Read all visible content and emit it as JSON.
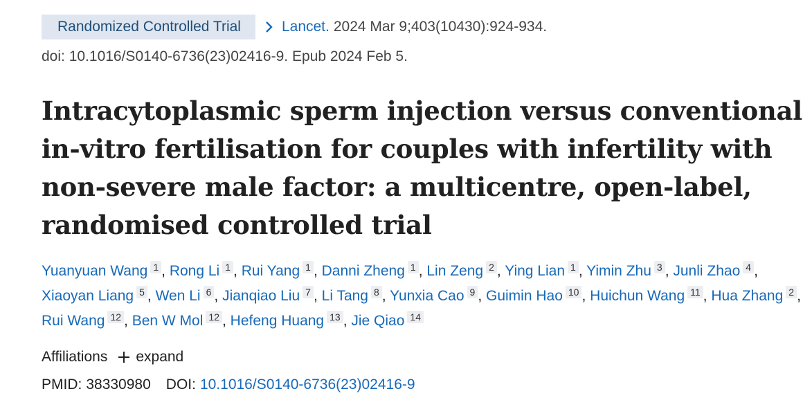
{
  "header": {
    "publication_type": "Randomized Controlled Trial",
    "journal": "Lancet.",
    "citation": "2024 Mar 9;403(10430):924-934.",
    "doi_line": "doi: 10.1016/S0140-6736(23)02416-9. Epub 2024 Feb 5."
  },
  "title": "Intracytoplasmic sperm injection versus conventional in-vitro fertilisation for couples with infertility with non-severe male factor: a multicentre, open-label, randomised controlled trial",
  "authors": [
    {
      "name": "Yuanyuan Wang",
      "aff": "1"
    },
    {
      "name": "Rong Li",
      "aff": "1"
    },
    {
      "name": "Rui Yang",
      "aff": "1"
    },
    {
      "name": "Danni Zheng",
      "aff": "1"
    },
    {
      "name": "Lin Zeng",
      "aff": "2"
    },
    {
      "name": "Ying Lian",
      "aff": "1"
    },
    {
      "name": "Yimin Zhu",
      "aff": "3"
    },
    {
      "name": "Junli Zhao",
      "aff": "4"
    },
    {
      "name": "Xiaoyan Liang",
      "aff": "5"
    },
    {
      "name": "Wen Li",
      "aff": "6"
    },
    {
      "name": "Jianqiao Liu",
      "aff": "7"
    },
    {
      "name": "Li Tang",
      "aff": "8"
    },
    {
      "name": "Yunxia Cao",
      "aff": "9"
    },
    {
      "name": "Guimin Hao",
      "aff": "10"
    },
    {
      "name": "Huichun Wang",
      "aff": "11"
    },
    {
      "name": "Hua Zhang",
      "aff": "2"
    },
    {
      "name": "Rui Wang",
      "aff": "12"
    },
    {
      "name": "Ben W Mol",
      "aff": "12"
    },
    {
      "name": "Hefeng Huang",
      "aff": "13"
    },
    {
      "name": "Jie Qiao",
      "aff": "14"
    }
  ],
  "affiliations": {
    "label": "Affiliations",
    "expand_label": "expand"
  },
  "identifiers": {
    "pmid_label": "PMID:",
    "pmid": "38330980",
    "doi_label": "DOI:",
    "doi": "10.1016/S0140-6736(23)02416-9"
  },
  "colors": {
    "link": "#1769b8",
    "badge_bg": "#dfe6ef",
    "text": "#212121"
  },
  "icons": {
    "journal_chevron": "chevron-right-icon",
    "expand": "plus-icon"
  }
}
